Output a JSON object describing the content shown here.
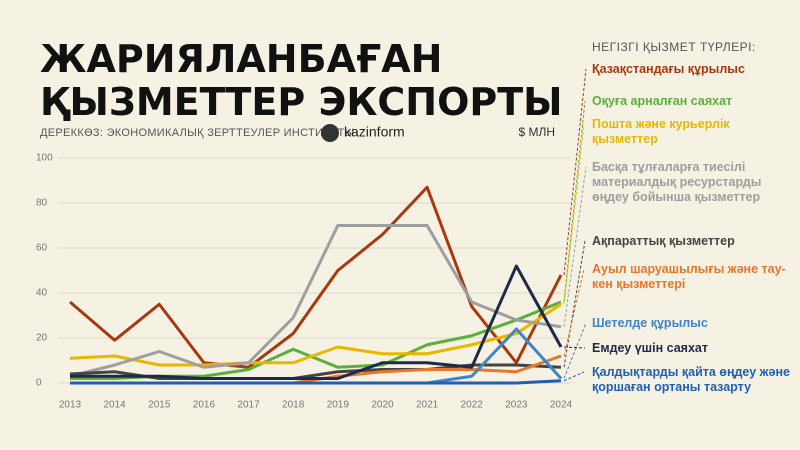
{
  "chart_data": {
    "type": "line",
    "title": [
      "ЖАРИЯЛАНБАҒАН",
      "ҚЫЗМЕТТЕР ЭКСПОРТЫ"
    ],
    "source": "ДЕРЕККӨЗ: ЭКОНОМИКАЛЫҚ ЗЕРТТЕУЛЕР ИНСТИТУТЫ",
    "brand": "kazinform",
    "unit": "$ МЛН",
    "legend_title": "НЕГІЗГІ ҚЫЗМЕТ ТҮРЛЕРІ:",
    "categories": [
      "2013",
      "2014",
      "2015",
      "2016",
      "2017",
      "2018",
      "2019",
      "2020",
      "2021",
      "2022",
      "2023",
      "2024"
    ],
    "ylim": [
      0,
      100
    ],
    "yticks": [
      0,
      20,
      40,
      60,
      80,
      100
    ],
    "grid": true,
    "series": [
      {
        "name": "Қазақстандағы құрылыс",
        "color": "#a8380e",
        "values": [
          36,
          19,
          35,
          9,
          7,
          22,
          50,
          66,
          87,
          34,
          9,
          48
        ]
      },
      {
        "name": "Оқуға арналған саяхат",
        "color": "#5bb03a",
        "values": [
          2,
          2,
          3,
          3,
          6,
          15,
          7,
          8,
          17,
          21,
          28,
          36
        ]
      },
      {
        "name": "Пошта және курьерлік қызметтер",
        "color": "#e8b800",
        "values": [
          11,
          12,
          8,
          8,
          9,
          9,
          16,
          13,
          13,
          17,
          22,
          35
        ]
      },
      {
        "name": "Басқа тұлғаларға тиесілі материалдық ресурстарды өңдеу бойынша қызметтер",
        "color": "#9e9e9e",
        "values": [
          3,
          8,
          14,
          7,
          9,
          29,
          70,
          70,
          70,
          36,
          28,
          25
        ]
      },
      {
        "name": "Ақпараттық қызметтер",
        "color": "#444444",
        "values": [
          4,
          5,
          2,
          2,
          2,
          2,
          5,
          6,
          6,
          8,
          8,
          7
        ]
      },
      {
        "name": "Ауыл шаруашылығы және тау-кен қызметтері",
        "color": "#e8762b",
        "values": [
          0,
          0,
          0,
          0,
          0,
          0,
          3,
          5,
          6,
          6,
          5,
          12
        ]
      },
      {
        "name": "Шетелде құрылыс",
        "color": "#3f86c6",
        "values": [
          0,
          0,
          0,
          0,
          0,
          0,
          0,
          0,
          0,
          3,
          24,
          2
        ]
      },
      {
        "name": "Емдеу үшін саяхат",
        "color": "#1e2a48",
        "values": [
          3,
          3,
          3,
          2,
          2,
          2,
          2,
          9,
          9,
          7,
          52,
          16
        ]
      },
      {
        "name": "Қалдықтарды қайта өңдеу және қоршаған ортаны тазарту",
        "color": "#1f5fb5",
        "values": [
          0,
          0,
          0,
          0,
          0,
          0,
          0,
          0,
          0,
          0,
          0,
          1
        ]
      }
    ]
  }
}
